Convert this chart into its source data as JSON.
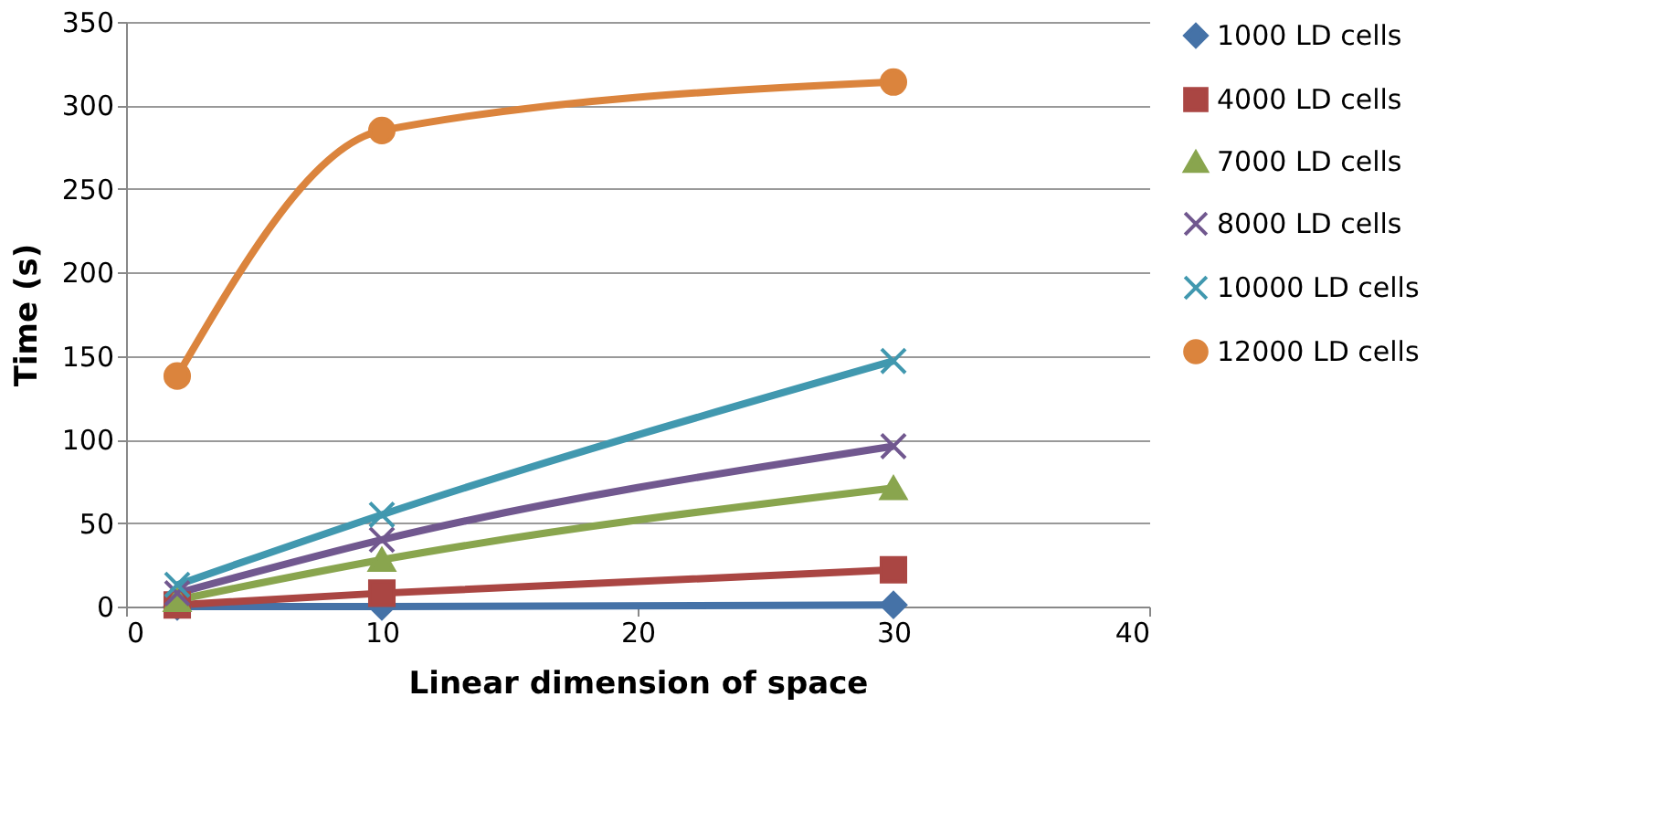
{
  "chart_data": {
    "type": "line",
    "xlabel": "Linear dimension of space",
    "ylabel": "Time (s)",
    "x": [
      2,
      10,
      30
    ],
    "series": [
      {
        "name": "1000 LD cells",
        "color": "#4572a7",
        "marker": "diamond",
        "values": [
          0,
          0,
          1
        ]
      },
      {
        "name": "4000 LD cells",
        "color": "#aa4643",
        "marker": "square",
        "values": [
          1,
          8,
          22
        ]
      },
      {
        "name": "7000 LD cells",
        "color": "#89a54e",
        "marker": "triangle",
        "values": [
          4,
          28,
          71
        ]
      },
      {
        "name": "8000 LD cells",
        "color": "#71588f",
        "marker": "cross",
        "values": [
          8,
          40,
          96
        ]
      },
      {
        "name": "10000 LD cells",
        "color": "#4198af",
        "marker": "cross",
        "values": [
          13,
          55,
          147
        ]
      },
      {
        "name": "12000 LD cells",
        "color": "#db843d",
        "marker": "circle",
        "values": [
          138,
          285,
          314
        ]
      }
    ],
    "xlim": [
      0,
      40
    ],
    "xticks": [
      0,
      10,
      20,
      30,
      40
    ],
    "ylim": [
      0,
      350
    ],
    "yticks": [
      0,
      50,
      100,
      150,
      200,
      250,
      300,
      350
    ],
    "grid": "y",
    "legend": "right",
    "line_style": "solid"
  }
}
